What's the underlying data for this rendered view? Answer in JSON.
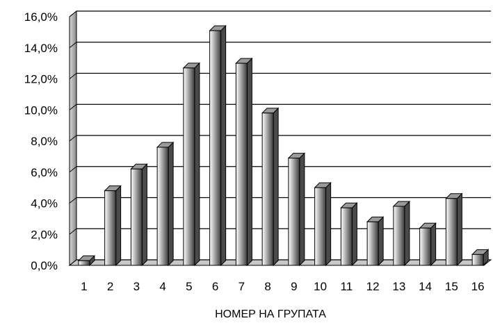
{
  "chart_data": {
    "type": "bar",
    "title": "",
    "xlabel": "НОМЕР НА ГРУПАТА",
    "ylabel": "",
    "categories": [
      "1",
      "2",
      "3",
      "4",
      "5",
      "6",
      "7",
      "8",
      "9",
      "10",
      "11",
      "12",
      "13",
      "14",
      "15",
      "16"
    ],
    "values": [
      0.3,
      4.8,
      6.2,
      7.6,
      12.7,
      15.1,
      13.0,
      9.8,
      6.9,
      5.0,
      3.7,
      2.8,
      3.8,
      2.4,
      4.3,
      0.7
    ],
    "ylim": [
      0,
      16
    ],
    "yticks": [
      0,
      2,
      4,
      6,
      8,
      10,
      12,
      14,
      16
    ],
    "ytick_labels": [
      "0,0%",
      "2,0%",
      "4,0%",
      "6,0%",
      "8,0%",
      "10,0%",
      "12,0%",
      "14,0%",
      "16,0%"
    ],
    "grid": true,
    "legend": "none",
    "style": "3d-column"
  }
}
